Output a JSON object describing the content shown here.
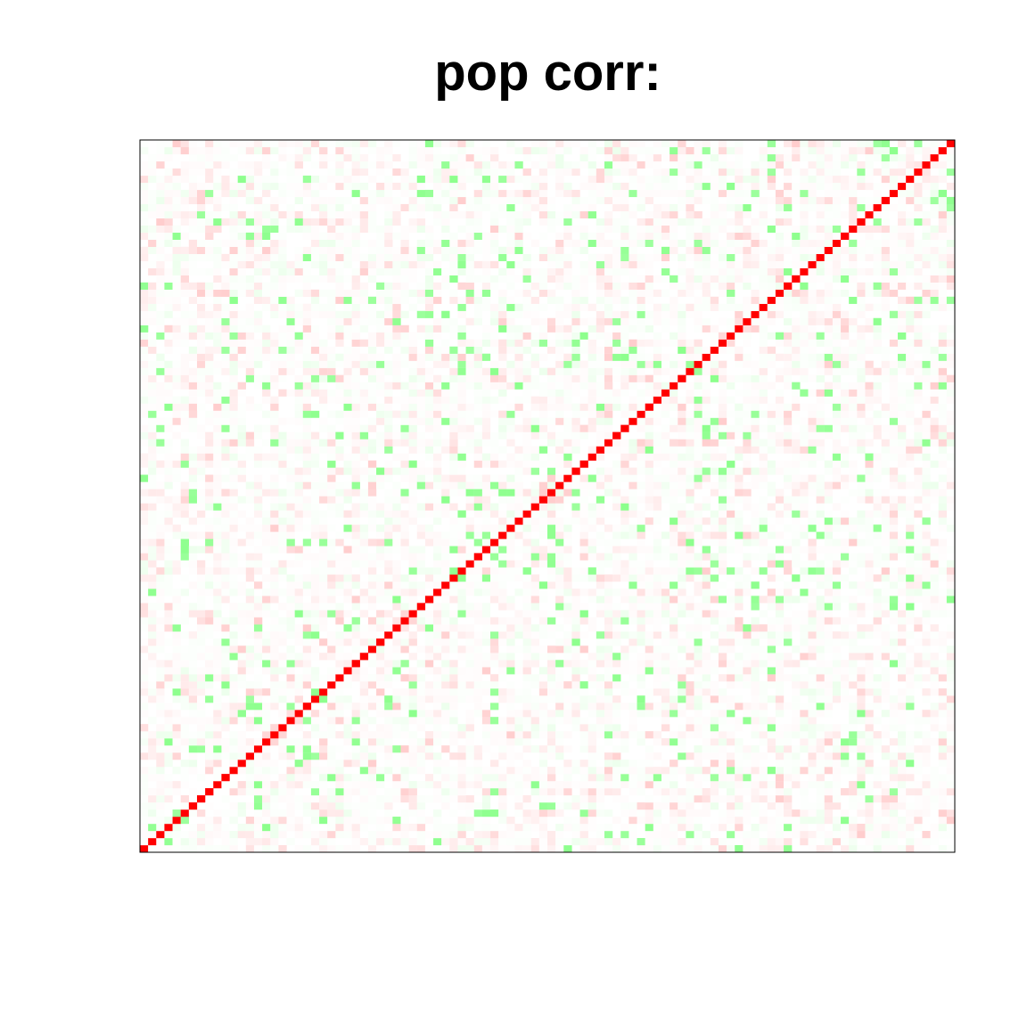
{
  "chart_data": {
    "type": "heatmap",
    "title": "pop corr:",
    "xlabel": "",
    "ylabel": "",
    "n": 100,
    "axes_shown": false,
    "frame": true,
    "color_scale": {
      "negative": "#00ff00",
      "zero": "#ffffff",
      "positive": "#ff0000"
    },
    "value_range": [
      -1,
      1
    ],
    "diagonal_value": 1,
    "diagonal_color": "#ff0000",
    "off_diagonal": {
      "range": [
        -0.45,
        0.2
      ],
      "strong_negative_value": -0.45,
      "strong_positive_value": 0.2,
      "seed": 20240511
    }
  }
}
